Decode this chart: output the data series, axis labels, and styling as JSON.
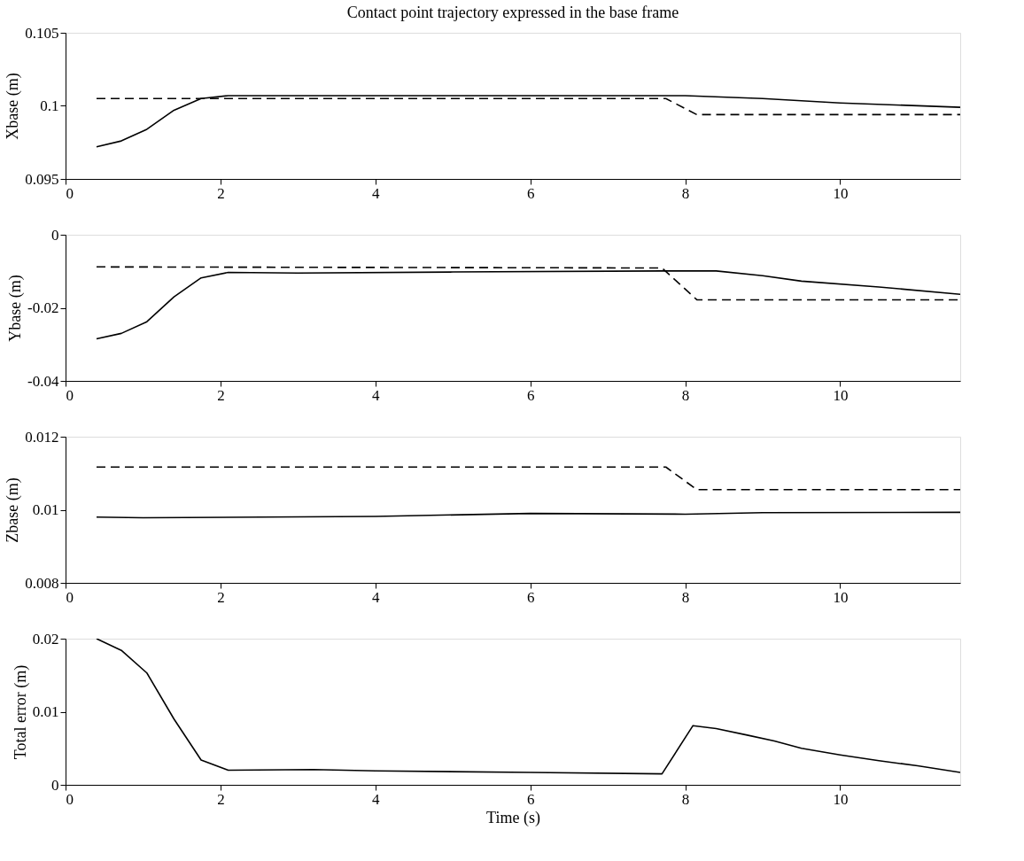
{
  "chart_data": [
    {
      "type": "line",
      "title": "Contact point trajectory expressed in the base frame",
      "ylabel": "Xbase (m)",
      "xlim": [
        0,
        11.55
      ],
      "xticks": [
        0,
        2,
        4,
        6,
        8,
        10
      ],
      "ylim": [
        0.095,
        0.105
      ],
      "yticks": [
        0.095,
        0.1,
        0.105
      ],
      "series": [
        {
          "color": "#000000",
          "line_style": "solid",
          "x": [
            0.4,
            0.72,
            1.05,
            1.4,
            1.75,
            2.1,
            3,
            6,
            8,
            9,
            10,
            11.55
          ],
          "values": [
            0.0972,
            0.0976,
            0.0984,
            0.0997,
            0.1005,
            0.1007,
            0.1007,
            0.1007,
            0.1007,
            0.1005,
            0.1002,
            0.0999
          ]
        },
        {
          "color": "#000000",
          "line_style": "dashed",
          "x": [
            0.4,
            7.75,
            8.15,
            11.55
          ],
          "values": [
            0.1005,
            0.1005,
            0.0994,
            0.0994
          ]
        }
      ]
    },
    {
      "type": "line",
      "ylabel": "Ybase (m)",
      "xlim": [
        0,
        11.55
      ],
      "xticks": [
        0,
        2,
        4,
        6,
        8,
        10
      ],
      "ylim": [
        -0.04,
        0
      ],
      "yticks": [
        -0.04,
        -0.02,
        0
      ],
      "series": [
        {
          "color": "#000000",
          "line_style": "solid",
          "x": [
            0.4,
            0.72,
            1.05,
            1.4,
            1.75,
            2.1,
            3,
            5,
            7.7,
            8.4,
            9,
            9.5,
            10.5,
            11.55
          ],
          "values": [
            -0.0285,
            -0.027,
            -0.0238,
            -0.017,
            -0.0118,
            -0.0103,
            -0.0105,
            -0.0102,
            -0.0099,
            -0.0099,
            -0.0112,
            -0.0127,
            -0.0143,
            -0.0163
          ]
        },
        {
          "color": "#000000",
          "line_style": "dashed",
          "x": [
            0.4,
            7.7,
            8.15,
            11.55
          ],
          "values": [
            -0.0088,
            -0.0091,
            -0.0178,
            -0.0178
          ]
        }
      ]
    },
    {
      "type": "line",
      "ylabel": "Zbase (m)",
      "xlim": [
        0,
        11.55
      ],
      "xticks": [
        0,
        2,
        4,
        6,
        8,
        10
      ],
      "ylim": [
        0.008,
        0.012
      ],
      "yticks": [
        0.008,
        0.01,
        0.012
      ],
      "series": [
        {
          "color": "#000000",
          "line_style": "solid",
          "x": [
            0.4,
            1,
            4,
            6,
            8,
            9,
            11.55
          ],
          "values": [
            0.0098,
            0.00978,
            0.00982,
            0.0099,
            0.00988,
            0.00992,
            0.00993
          ]
        },
        {
          "color": "#000000",
          "line_style": "dashed",
          "x": [
            0.4,
            7.75,
            8.15,
            11.55
          ],
          "values": [
            0.01117,
            0.01117,
            0.01055,
            0.01055
          ]
        }
      ]
    },
    {
      "type": "line",
      "xlabel": "Time (s)",
      "ylabel": "Total error (m)",
      "xlim": [
        0,
        11.55
      ],
      "xticks": [
        0,
        2,
        4,
        6,
        8,
        10
      ],
      "ylim": [
        0,
        0.02
      ],
      "yticks": [
        0,
        0.01,
        0.02
      ],
      "series": [
        {
          "color": "#000000",
          "line_style": "solid",
          "x": [
            0.4,
            0.72,
            1.05,
            1.4,
            1.75,
            2.1,
            3.2,
            4,
            6,
            7.7,
            8.1,
            8.4,
            8.8,
            9.15,
            9.5,
            10,
            10.5,
            11,
            11.55
          ],
          "values": [
            0.02,
            0.0184,
            0.0153,
            0.009,
            0.0034,
            0.002,
            0.0021,
            0.0019,
            0.0017,
            0.0015,
            0.0081,
            0.0077,
            0.0068,
            0.006,
            0.005,
            0.0041,
            0.0033,
            0.0026,
            0.0017
          ]
        }
      ]
    }
  ]
}
